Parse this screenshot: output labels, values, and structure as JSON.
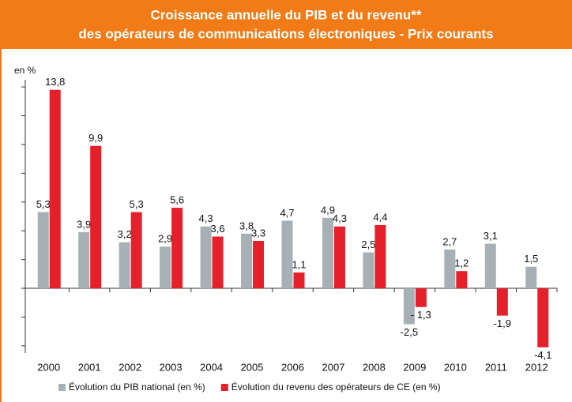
{
  "chart_data": {
    "type": "bar",
    "title": [
      "Croissance annuelle du PIB et du revenu**",
      "des opérateurs de communications électroniques - Prix courants"
    ],
    "y_label": "en %",
    "categories": [
      "2000",
      "2001",
      "2002",
      "2003",
      "2004",
      "2005",
      "2006",
      "2007",
      "2008",
      "2009",
      "2010",
      "2011",
      "2012"
    ],
    "series": [
      {
        "name": "Évolution du PIB national (en %)",
        "color": "#a7b1b5",
        "values": [
          5.3,
          3.9,
          3.2,
          2.9,
          4.3,
          3.8,
          4.7,
          4.9,
          2.5,
          -2.5,
          2.7,
          3.1,
          1.5
        ],
        "value_labels": [
          "5,3",
          "3,9",
          "3,2",
          "2,9",
          "4,3",
          "3,8",
          "4,7",
          "4,9",
          "2,5",
          "-2,5",
          "2,7",
          "3,1",
          "1,5"
        ]
      },
      {
        "name": "Évolution du revenu des opérateurs de CE (en %)",
        "color": "#e5202b",
        "values": [
          13.8,
          9.9,
          5.3,
          5.6,
          3.6,
          3.3,
          1.1,
          4.3,
          4.4,
          -1.3,
          1.2,
          -1.9,
          -4.1
        ],
        "value_labels": [
          "13,8",
          "9,9",
          "5,3",
          "5,6",
          "3,6",
          "3,3",
          "1,1",
          "4,3",
          "4,4",
          "- 1,3",
          "1,2",
          "-1,9",
          "-4,1"
        ]
      }
    ],
    "ylim": [
      -4.5,
      14.5
    ],
    "yticks": [
      -4,
      -2,
      0,
      2,
      4,
      6,
      8,
      10,
      12,
      14
    ]
  }
}
